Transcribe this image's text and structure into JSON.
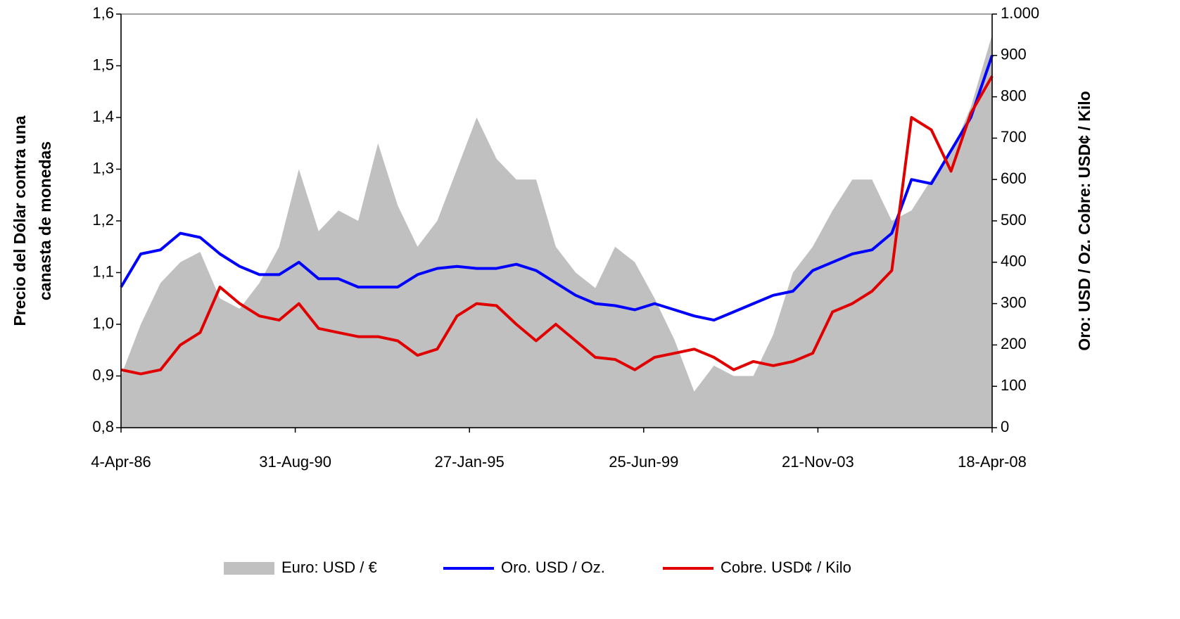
{
  "chart_data": {
    "type": "line",
    "y_label": [
      "Precio del Dólar contra una",
      "canasta de monedas"
    ],
    "y2_label": "Oro: USD  / Oz. Cobre: USD¢ / Kilo",
    "x": [
      "1986-04-04",
      "1986-10-04",
      "1987-04-04",
      "1987-10-04",
      "1988-04-04",
      "1988-10-04",
      "1989-04-04",
      "1989-10-04",
      "1990-04-04",
      "1990-10-04",
      "1991-04-04",
      "1991-10-04",
      "1992-04-04",
      "1992-10-04",
      "1993-04-04",
      "1993-10-04",
      "1994-04-04",
      "1994-10-04",
      "1995-04-04",
      "1995-10-04",
      "1996-04-04",
      "1996-10-04",
      "1997-04-04",
      "1997-10-04",
      "1998-04-04",
      "1998-10-04",
      "1999-04-04",
      "1999-10-04",
      "2000-04-04",
      "2000-10-04",
      "2001-04-04",
      "2001-10-04",
      "2002-04-04",
      "2002-10-04",
      "2003-04-04",
      "2003-10-04",
      "2004-04-04",
      "2004-10-04",
      "2005-04-04",
      "2005-10-04",
      "2006-04-04",
      "2006-10-04",
      "2007-04-04",
      "2007-10-04",
      "2008-04-18"
    ],
    "series": [
      {
        "name": "Euro: USD / €",
        "color": "#c0c0c0",
        "style": "area",
        "axis": "y",
        "values": [
          0.9,
          1.0,
          1.08,
          1.12,
          1.14,
          1.05,
          1.03,
          1.08,
          1.15,
          1.3,
          1.18,
          1.22,
          1.2,
          1.35,
          1.23,
          1.15,
          1.2,
          1.3,
          1.4,
          1.32,
          1.28,
          1.28,
          1.15,
          1.1,
          1.07,
          1.15,
          1.12,
          1.05,
          0.97,
          0.87,
          0.92,
          0.9,
          0.9,
          0.98,
          1.1,
          1.15,
          1.22,
          1.28,
          1.28,
          1.2,
          1.22,
          1.28,
          1.33,
          1.42,
          1.56
        ]
      },
      {
        "name": "Oro. USD / Oz.",
        "color": "#0000ff",
        "style": "line",
        "axis": "y2",
        "values": [
          340,
          420,
          430,
          470,
          460,
          420,
          390,
          370,
          370,
          400,
          360,
          360,
          340,
          340,
          340,
          370,
          385,
          390,
          385,
          385,
          395,
          380,
          350,
          320,
          300,
          295,
          285,
          300,
          285,
          270,
          260,
          280,
          300,
          320,
          330,
          380,
          400,
          420,
          430,
          470,
          600,
          590,
          670,
          750,
          900
        ]
      },
      {
        "name": "Cobre. USD¢ / Kilo",
        "color": "#e00000",
        "style": "line",
        "axis": "y2",
        "values": [
          140,
          130,
          140,
          200,
          230,
          340,
          300,
          270,
          260,
          300,
          240,
          230,
          220,
          220,
          210,
          175,
          190,
          270,
          300,
          295,
          250,
          210,
          250,
          210,
          170,
          165,
          140,
          170,
          180,
          190,
          170,
          140,
          160,
          150,
          160,
          180,
          280,
          300,
          330,
          380,
          750,
          720,
          620,
          760,
          850
        ]
      }
    ],
    "xlim": [
      "1986-04-04",
      "2008-04-18"
    ],
    "xticks": [
      {
        "value": "1986-04-04",
        "label": "4-Apr-86"
      },
      {
        "value": "1990-08-31",
        "label": "31-Aug-90"
      },
      {
        "value": "1995-01-27",
        "label": "27-Jan-95"
      },
      {
        "value": "1999-06-25",
        "label": "25-Jun-99"
      },
      {
        "value": "2003-11-21",
        "label": "21-Nov-03"
      },
      {
        "value": "2008-04-18",
        "label": "18-Apr-08"
      }
    ],
    "ylim": [
      0.8,
      1.6
    ],
    "yticks": [
      {
        "value": 0.8,
        "label": "0,8"
      },
      {
        "value": 0.9,
        "label": "0,9"
      },
      {
        "value": 1.0,
        "label": "1,0"
      },
      {
        "value": 1.1,
        "label": "1,1"
      },
      {
        "value": 1.2,
        "label": "1,2"
      },
      {
        "value": 1.3,
        "label": "1,3"
      },
      {
        "value": 1.4,
        "label": "1,4"
      },
      {
        "value": 1.5,
        "label": "1,5"
      },
      {
        "value": 1.6,
        "label": "1,6"
      }
    ],
    "y2lim": [
      0,
      1000
    ],
    "y2ticks": [
      0,
      100,
      200,
      300,
      400,
      500,
      600,
      700,
      800,
      900,
      {
        "value": 1000,
        "label": "1.000"
      }
    ],
    "legend": "bottom"
  }
}
